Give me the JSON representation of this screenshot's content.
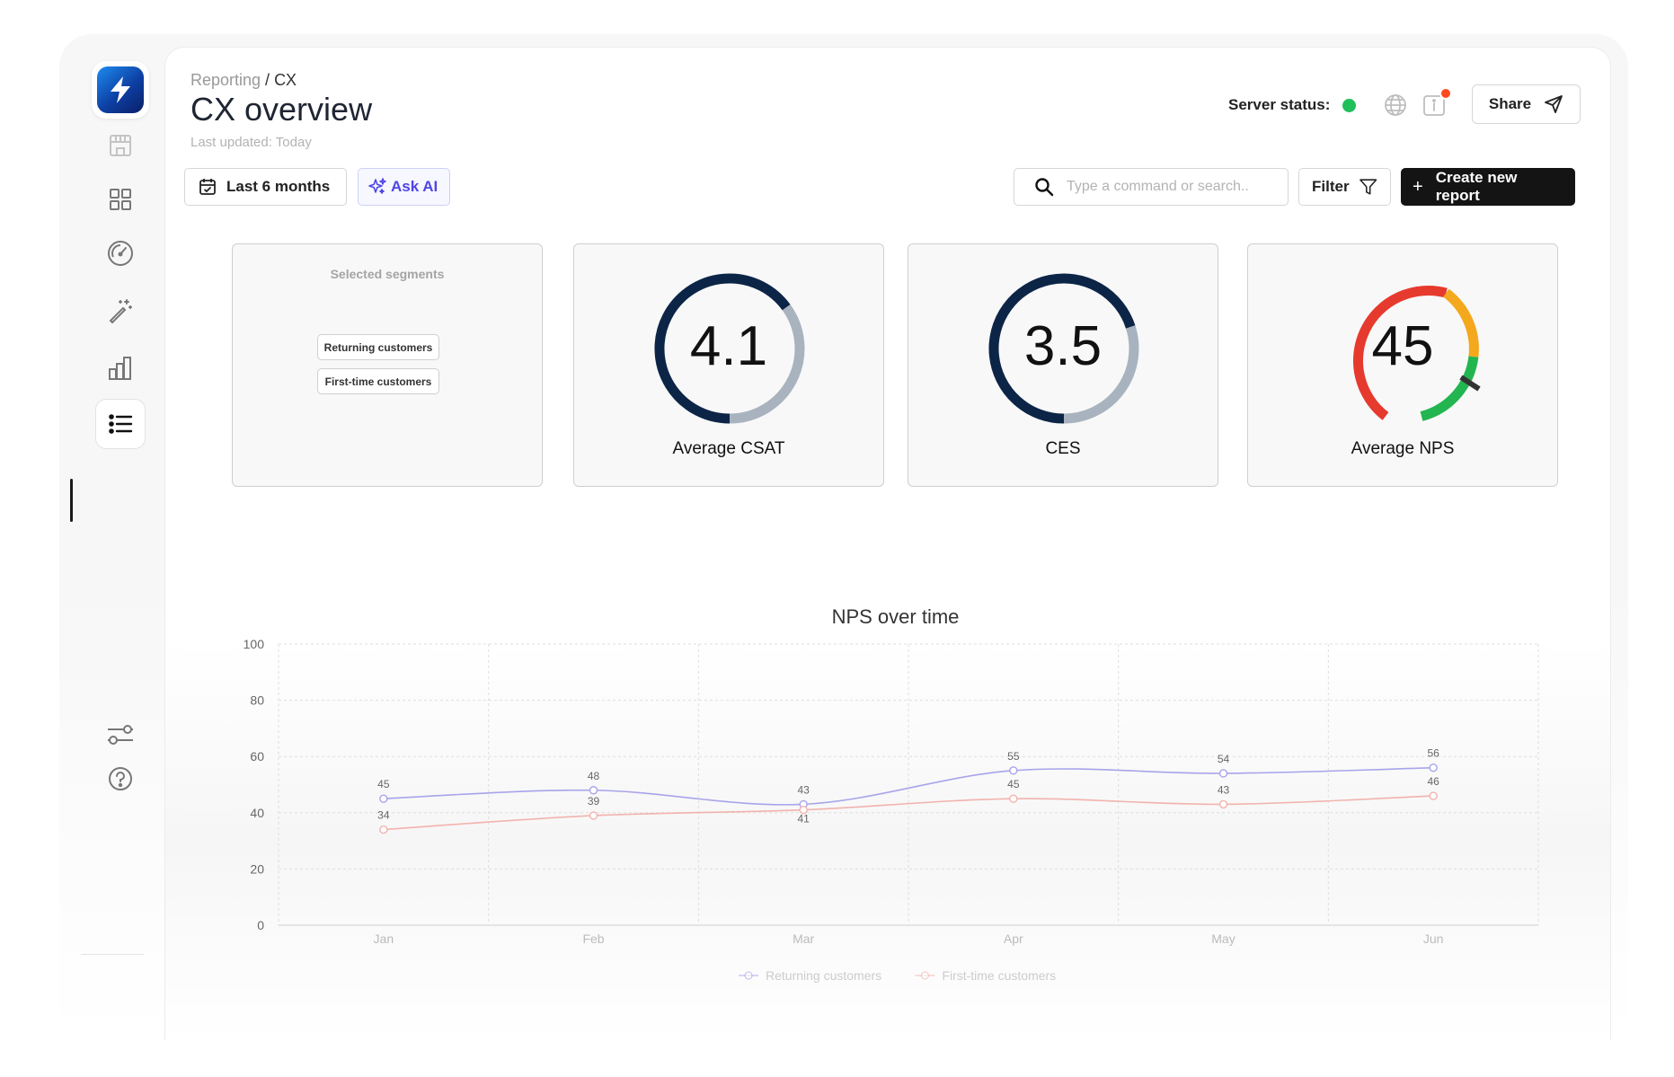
{
  "header": {
    "breadcrumb_parent": "Reporting",
    "breadcrumb_sep": " / ",
    "breadcrumb_current": "CX",
    "title": "CX overview",
    "last_updated": "Last updated: Today",
    "server_status_label": "Server status:",
    "server_status_color": "#1fbf5a",
    "notification_color": "#ff4a1f",
    "share_label": "Share"
  },
  "toolbar": {
    "date_range": "Last 6 months",
    "ask_ai": "Ask AI",
    "search_placeholder": "Type a command or search..",
    "filter": "Filter",
    "create_prefix": "+",
    "create_label": "Create new report"
  },
  "sidebar": {
    "icons": [
      "store-icon",
      "dashboard-grid-icon",
      "gauge-icon",
      "magic-wand-icon",
      "bar-chart-icon",
      "list-icon",
      "settings-sliders-icon",
      "help-icon"
    ],
    "active": "list-icon"
  },
  "segments": {
    "title": "Selected segments",
    "items": [
      "Returning customers",
      "First-time customers"
    ]
  },
  "kpis": [
    {
      "value": "4.1",
      "label": "Average CSAT",
      "max": 5,
      "fill_color": "#0c2547",
      "track_color": "#a8b3bf"
    },
    {
      "value": "3.5",
      "label": "CES",
      "max": 5,
      "fill_color": "#0c2547",
      "track_color": "#a8b3bf"
    },
    {
      "value": "45",
      "label": "Average NPS",
      "colors": [
        "#e63a2e",
        "#f4a81d",
        "#22b550"
      ]
    }
  ],
  "chart_data": {
    "type": "line",
    "title": "NPS over time",
    "categories": [
      "Jan",
      "Feb",
      "Mar",
      "Apr",
      "May",
      "Jun"
    ],
    "ylim": [
      0,
      100
    ],
    "yticks": [
      0,
      20,
      40,
      60,
      80,
      100
    ],
    "grid": true,
    "legend": "bottom",
    "series": [
      {
        "name": "Returning customers",
        "values": [
          45,
          48,
          43,
          55,
          54,
          56
        ],
        "color": "#a8a4ea"
      },
      {
        "name": "First-time customers",
        "values": [
          34,
          39,
          41,
          45,
          43,
          46
        ],
        "color": "#f2b3ae"
      }
    ]
  }
}
